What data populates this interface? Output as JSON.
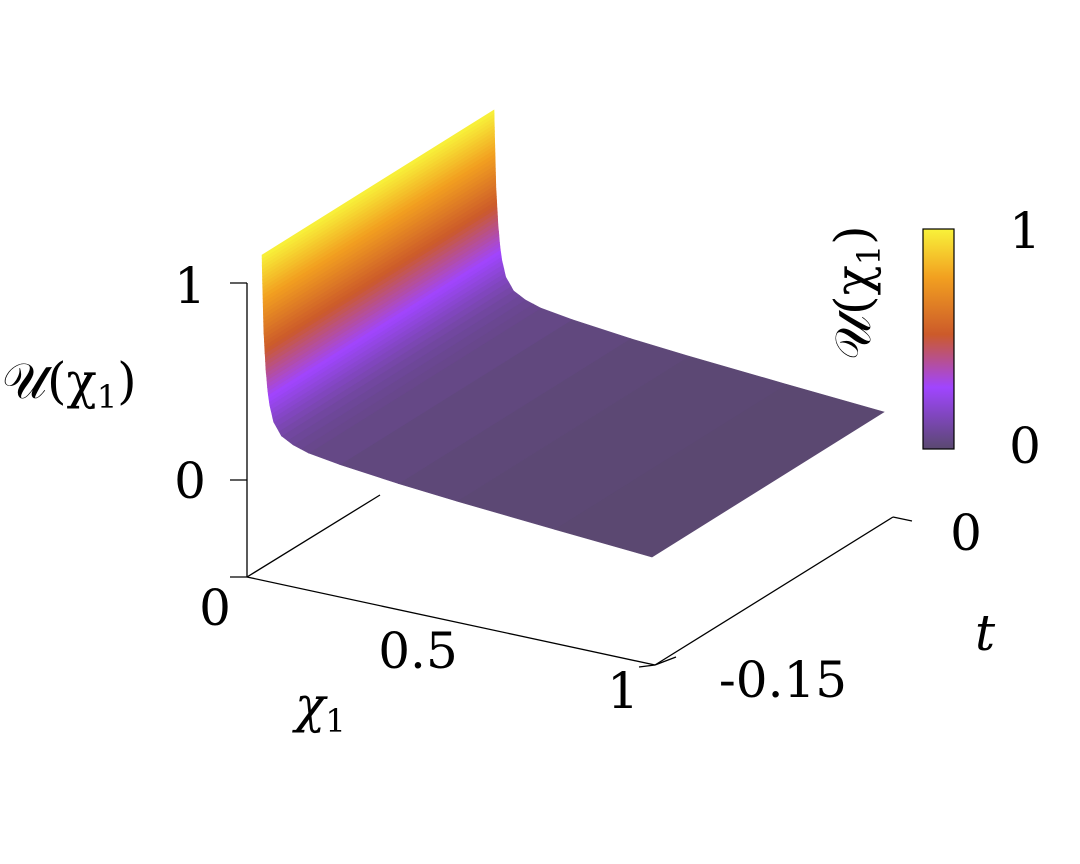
{
  "chart_data": {
    "type": "surface",
    "axes": {
      "x": {
        "symbol": "χ",
        "subscript": "1",
        "range": [
          0,
          1
        ],
        "ticks": [
          "0",
          "0.5",
          "1"
        ]
      },
      "t": {
        "symbol": "t",
        "range": [
          -0.15,
          0
        ],
        "ticks": [
          "-0.15",
          "0"
        ]
      },
      "z": {
        "label_script": "𝒰(χ",
        "label_sub": "1",
        "label_close": ")",
        "range": [
          0,
          1
        ],
        "ticks": [
          "0",
          "1"
        ]
      }
    },
    "colorbar": {
      "label_script": "𝒰(χ",
      "label_sub": "1",
      "label_close": ")",
      "ticks": [
        "0",
        "1"
      ],
      "colors": [
        "#5a4870",
        "#a045ff",
        "#cc5a2a",
        "#f2a020",
        "#f8f23a"
      ]
    },
    "profile": {
      "x": [
        0,
        0.002,
        0.005,
        0.01,
        0.015,
        0.02,
        0.03,
        0.05,
        0.08,
        0.12,
        0.2,
        0.35,
        0.5,
        0.75,
        1.0
      ],
      "u": [
        1.0,
        0.82,
        0.6,
        0.42,
        0.31,
        0.24,
        0.16,
        0.1,
        0.07,
        0.05,
        0.035,
        0.02,
        0.012,
        0.005,
        0.0
      ]
    },
    "grid": false
  }
}
